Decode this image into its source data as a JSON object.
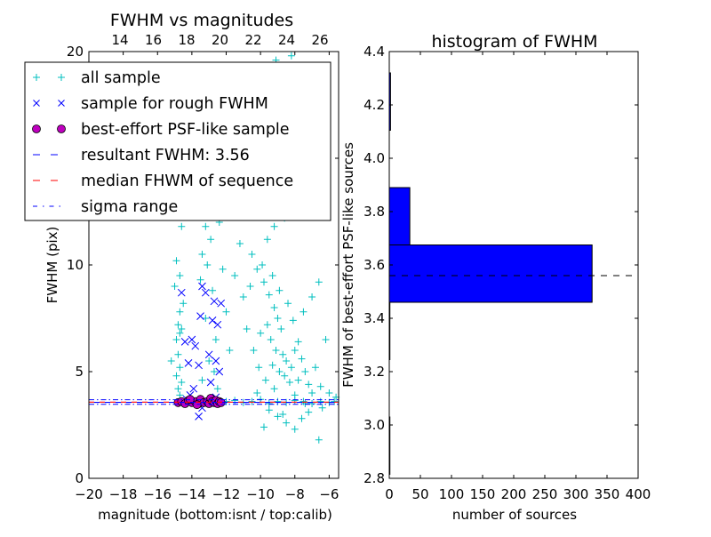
{
  "chart_data": [
    {
      "type": "scatter",
      "title": "FWHM vs magnitudes",
      "xlabel": "magnitude (bottom:isnt / top:calib)",
      "ylabel": "FWHM (pix)",
      "xlim": [
        -20,
        -5.45
      ],
      "ylim": [
        0,
        20
      ],
      "xticks": [
        -20,
        -18,
        -16,
        -14,
        -12,
        -10,
        -8,
        -6
      ],
      "xtick_labels": [
        "−20",
        "−18",
        "−16",
        "−14",
        "−12",
        "−10",
        "−8",
        "−6"
      ],
      "yticks": [
        0,
        5,
        10,
        15,
        20
      ],
      "ytick_labels": [
        "0",
        "5",
        "10",
        "15",
        "20"
      ],
      "top_xlim": [
        12.13,
        27.12
      ],
      "top_xticks": [
        14,
        16,
        18,
        20,
        22,
        24,
        26
      ],
      "top_xtick_labels": [
        "14",
        "16",
        "18",
        "20",
        "22",
        "24",
        "26"
      ],
      "legend_placement": "upper-left",
      "legend": [
        "all sample",
        "sample for rough FWHM",
        "best-effort PSF-like sample",
        "resultant FWHM: 3.56",
        "median FHWM of sequence",
        "sigma range"
      ],
      "colors": {
        "all": "#00bfbf",
        "rough": "#0000ff",
        "psf": "#bf00bf",
        "result": "#0000ff",
        "median": "#ff0000",
        "sigma": "#0000ff"
      },
      "resultant_fwhm": 3.56,
      "median_fwhm": 3.57,
      "sigma_range": [
        3.47,
        3.68
      ],
      "series": {
        "all_sample": [
          [
            -14.8,
            7.2
          ],
          [
            -14.7,
            6.8
          ],
          [
            -14.9,
            6.5
          ],
          [
            -14.6,
            7.0
          ],
          [
            -14.8,
            5.8
          ],
          [
            -14.7,
            5.2
          ],
          [
            -14.9,
            4.8
          ],
          [
            -14.6,
            4.5
          ],
          [
            -14.8,
            4.2
          ],
          [
            -14.7,
            3.9
          ],
          [
            -15.2,
            5.5
          ],
          [
            -14.5,
            8.2
          ],
          [
            -14.7,
            9.5
          ],
          [
            -14.9,
            10.2
          ],
          [
            -14.6,
            11.8
          ],
          [
            -14.8,
            12.5
          ],
          [
            -15.0,
            9.0
          ],
          [
            -14.7,
            7.8
          ],
          [
            -13.3,
            12.5
          ],
          [
            -13.2,
            11.8
          ],
          [
            -13.0,
            13.0
          ],
          [
            -13.4,
            10.5
          ],
          [
            -13.1,
            10.0
          ],
          [
            -12.9,
            11.2
          ],
          [
            -13.5,
            9.3
          ],
          [
            -12.8,
            8.8
          ],
          [
            -13.2,
            7.5
          ],
          [
            -12.6,
            6.5
          ],
          [
            -13.0,
            5.5
          ],
          [
            -12.7,
            5.0
          ],
          [
            -13.4,
            4.6
          ],
          [
            -12.5,
            4.2
          ],
          [
            -13.1,
            14.5
          ],
          [
            -12.4,
            12.0
          ],
          [
            -12.2,
            9.8
          ],
          [
            -12.0,
            7.8
          ],
          [
            -11.8,
            6.0
          ],
          [
            -10.5,
            10.5
          ],
          [
            -10.2,
            9.8
          ],
          [
            -9.8,
            9.2
          ],
          [
            -9.5,
            8.6
          ],
          [
            -9.2,
            8.0
          ],
          [
            -9.0,
            7.5
          ],
          [
            -8.8,
            7.0
          ],
          [
            -9.6,
            7.2
          ],
          [
            -10.0,
            6.8
          ],
          [
            -9.4,
            6.5
          ],
          [
            -9.1,
            6.0
          ],
          [
            -8.7,
            5.8
          ],
          [
            -8.5,
            5.5
          ],
          [
            -9.3,
            5.3
          ],
          [
            -8.9,
            5.0
          ],
          [
            -8.6,
            4.8
          ],
          [
            -8.3,
            4.5
          ],
          [
            -9.7,
            4.6
          ],
          [
            -10.1,
            5.2
          ],
          [
            -10.4,
            6.0
          ],
          [
            -10.8,
            7.0
          ],
          [
            -11.0,
            8.5
          ],
          [
            -10.6,
            9.0
          ],
          [
            -9.9,
            10.0
          ],
          [
            -9.3,
            9.5
          ],
          [
            -8.9,
            8.8
          ],
          [
            -8.4,
            8.2
          ],
          [
            -8.1,
            7.4
          ],
          [
            -7.8,
            6.4
          ],
          [
            -7.6,
            5.6
          ],
          [
            -7.4,
            5.0
          ],
          [
            -7.2,
            4.4
          ],
          [
            -7.0,
            4.0
          ],
          [
            -7.8,
            4.6
          ],
          [
            -8.2,
            5.2
          ],
          [
            -8.0,
            6.0
          ],
          [
            -9.6,
            11.2
          ],
          [
            -9.2,
            11.8
          ],
          [
            -10.3,
            12.6
          ],
          [
            -9.0,
            13.0
          ],
          [
            -8.6,
            12.2
          ],
          [
            -9.8,
            14.0
          ],
          [
            -10.6,
            14.8
          ],
          [
            -8.8,
            15.5
          ],
          [
            -9.4,
            16.5
          ],
          [
            -10.0,
            17.8
          ],
          [
            -8.5,
            18.5
          ],
          [
            -9.1,
            19.6
          ],
          [
            -8.2,
            19.8
          ],
          [
            -11.2,
            11.0
          ],
          [
            -11.5,
            9.5
          ],
          [
            -11.8,
            12.5
          ],
          [
            -7.5,
            7.8
          ],
          [
            -7.0,
            8.5
          ],
          [
            -6.6,
            9.2
          ],
          [
            -6.2,
            6.5
          ],
          [
            -6.8,
            5.2
          ],
          [
            -6.5,
            4.3
          ],
          [
            -6.0,
            4.0
          ],
          [
            -5.6,
            3.8
          ],
          [
            -9.5,
            3.2
          ],
          [
            -9.0,
            2.9
          ],
          [
            -8.5,
            2.6
          ],
          [
            -8.0,
            2.3
          ],
          [
            -7.6,
            2.8
          ],
          [
            -7.2,
            3.1
          ],
          [
            -6.6,
            1.8
          ],
          [
            -9.8,
            2.4
          ],
          [
            -8.7,
            3.0
          ],
          [
            -10.2,
            4.0
          ],
          [
            -9.2,
            4.2
          ],
          [
            -8.0,
            3.9
          ],
          [
            -7.4,
            3.5
          ],
          [
            -6.4,
            3.3
          ],
          [
            -14.0,
            3.6
          ],
          [
            -13.5,
            3.5
          ],
          [
            -12.0,
            3.6
          ],
          [
            -11.5,
            3.65
          ],
          [
            -11.0,
            3.55
          ],
          [
            -10.5,
            3.6
          ],
          [
            -10.0,
            3.7
          ],
          [
            -9.5,
            3.5
          ],
          [
            -9.0,
            3.6
          ],
          [
            -8.5,
            3.55
          ],
          [
            -8.0,
            3.65
          ],
          [
            -7.5,
            3.6
          ],
          [
            -7.0,
            3.5
          ],
          [
            -6.5,
            3.6
          ],
          [
            -6.0,
            3.55
          ],
          [
            -5.7,
            3.6
          ]
        ],
        "rough_sample": [
          [
            -14.6,
            8.7
          ],
          [
            -13.4,
            9.0
          ],
          [
            -13.2,
            8.7
          ],
          [
            -12.7,
            8.3
          ],
          [
            -12.3,
            8.2
          ],
          [
            -14.4,
            6.4
          ],
          [
            -14.0,
            6.5
          ],
          [
            -13.8,
            6.2
          ],
          [
            -13.5,
            7.6
          ],
          [
            -12.8,
            7.4
          ],
          [
            -12.5,
            7.2
          ],
          [
            -14.2,
            5.4
          ],
          [
            -13.6,
            5.3
          ],
          [
            -13.0,
            5.8
          ],
          [
            -12.6,
            5.5
          ],
          [
            -12.4,
            5.0
          ],
          [
            -12.9,
            4.5
          ],
          [
            -13.9,
            4.2
          ],
          [
            -14.1,
            3.9
          ],
          [
            -12.6,
            3.8
          ],
          [
            -13.4,
            3.3
          ],
          [
            -13.6,
            2.9
          ],
          [
            -14.3,
            3.7
          ],
          [
            -12.5,
            3.6
          ]
        ],
        "psf_sample": [
          [
            -14.8,
            3.55
          ],
          [
            -14.6,
            3.6
          ],
          [
            -14.4,
            3.5
          ],
          [
            -14.2,
            3.65
          ],
          [
            -14.0,
            3.55
          ],
          [
            -13.8,
            3.6
          ],
          [
            -13.6,
            3.5
          ],
          [
            -13.5,
            3.7
          ],
          [
            -13.3,
            3.55
          ],
          [
            -13.1,
            3.6
          ],
          [
            -13.0,
            3.5
          ],
          [
            -12.9,
            3.75
          ],
          [
            -12.8,
            3.6
          ],
          [
            -12.7,
            3.55
          ],
          [
            -12.6,
            3.65
          ],
          [
            -12.5,
            3.5
          ],
          [
            -12.4,
            3.6
          ],
          [
            -14.1,
            3.7
          ],
          [
            -13.7,
            3.45
          ],
          [
            -12.3,
            3.55
          ]
        ]
      }
    },
    {
      "type": "bar",
      "orientation": "horizontal",
      "title": "histogram of FWHM",
      "xlabel": "number of sources",
      "ylabel": "FWHM of best-effort PSF-like sources",
      "xlim": [
        0,
        400
      ],
      "ylim": [
        2.8,
        4.4
      ],
      "xticks": [
        0,
        50,
        100,
        150,
        200,
        250,
        300,
        350,
        400
      ],
      "xtick_labels": [
        "0",
        "50",
        "100",
        "150",
        "200",
        "250",
        "300",
        "350",
        "400"
      ],
      "yticks": [
        2.8,
        3.0,
        3.2,
        3.4,
        3.6,
        3.8,
        4.0,
        4.2,
        4.4
      ],
      "ytick_labels": [
        "2.8",
        "3.0",
        "3.2",
        "3.4",
        "3.6",
        "3.8",
        "4.0",
        "4.2",
        "4.4"
      ],
      "bin_edges": [
        2.815,
        3.03,
        3.245,
        3.46,
        3.675,
        3.89,
        4.105,
        4.32
      ],
      "values": [
        1,
        0,
        1,
        326,
        33,
        0,
        2
      ],
      "bar_color": "#0000ff",
      "reference_line": 3.56
    }
  ]
}
